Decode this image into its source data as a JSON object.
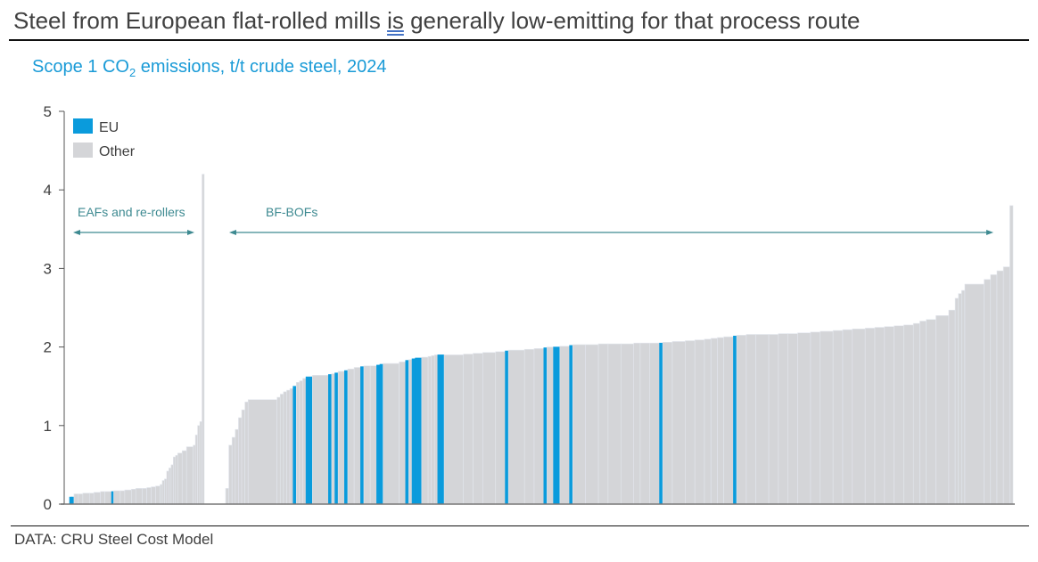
{
  "header": {
    "title_before": "Steel from European flat-rolled mills ",
    "title_underlined": "is",
    "title_after": " generally low-emitting for that process route",
    "subtitle_before": "Scope 1 CO",
    "subtitle_sub": "2",
    "subtitle_after": " emissions, t/t crude steel, 2024"
  },
  "footer": {
    "source": "DATA: CRU Steel Cost Model"
  },
  "colors": {
    "eu": "#0a9bdc",
    "other": "#d4d5d8",
    "other_edge": "#e3e7ee",
    "annotation": "#3e8a91",
    "axis": "#555555"
  },
  "chart_data": {
    "type": "bar",
    "title": "Scope 1 CO2 emissions, t/t crude steel, 2024",
    "xlabel": "",
    "ylabel": "",
    "ylim": [
      0,
      5
    ],
    "yticks": [
      "0",
      "1",
      "2",
      "3",
      "4",
      "5"
    ],
    "grid": false,
    "legend": {
      "position": "top-left",
      "entries": [
        {
          "name": "EU",
          "key": "eu"
        },
        {
          "name": "Other",
          "key": "other"
        }
      ]
    },
    "annotations": [
      {
        "text": "EAFs and re-rollers",
        "group": "eaf"
      },
      {
        "text": "BF-BOFs",
        "group": "bof"
      }
    ],
    "note": "Each bar is a mill; bar value = emissions (t CO2/t), weight = relative bar width, eu = EU mill",
    "groups": [
      {
        "name": "EAFs and re-rollers",
        "key": "eaf",
        "bars": [
          [
            0.09,
            1,
            1
          ],
          [
            0.09,
            1,
            1
          ],
          [
            0.13,
            2,
            0
          ],
          [
            0.13,
            2,
            0
          ],
          [
            0.14,
            3,
            0
          ],
          [
            0.14,
            2,
            0
          ],
          [
            0.15,
            3,
            0
          ],
          [
            0.16,
            2,
            0
          ],
          [
            0.16,
            3,
            0
          ],
          [
            0.16,
            1,
            1
          ],
          [
            0.17,
            3,
            0
          ],
          [
            0.17,
            2,
            0
          ],
          [
            0.18,
            3,
            0
          ],
          [
            0.19,
            2,
            0
          ],
          [
            0.2,
            3,
            0
          ],
          [
            0.2,
            2,
            0
          ],
          [
            0.21,
            2,
            0
          ],
          [
            0.22,
            2,
            0
          ],
          [
            0.23,
            2,
            0
          ],
          [
            0.25,
            1,
            0
          ],
          [
            0.3,
            1,
            0
          ],
          [
            0.32,
            1,
            0
          ],
          [
            0.42,
            1,
            0
          ],
          [
            0.46,
            1,
            0
          ],
          [
            0.5,
            1,
            0
          ],
          [
            0.6,
            1,
            0
          ],
          [
            0.62,
            1,
            0
          ],
          [
            0.65,
            2,
            0
          ],
          [
            0.68,
            2,
            0
          ],
          [
            0.73,
            3,
            0
          ],
          [
            0.75,
            1,
            0
          ],
          [
            0.88,
            1,
            0
          ],
          [
            1.0,
            1,
            0
          ],
          [
            1.05,
            1,
            0
          ],
          [
            4.2,
            1,
            0
          ]
        ]
      },
      {
        "name": "BF-BOFs",
        "key": "bof",
        "bars": [
          [
            0.2,
            1,
            0
          ],
          [
            0.75,
            1,
            0
          ],
          [
            0.85,
            1,
            0
          ],
          [
            0.95,
            1,
            0
          ],
          [
            1.1,
            1,
            0
          ],
          [
            1.2,
            1,
            0
          ],
          [
            1.3,
            1,
            0
          ],
          [
            1.33,
            9,
            0
          ],
          [
            1.36,
            1,
            0
          ],
          [
            1.4,
            1,
            0
          ],
          [
            1.43,
            1,
            0
          ],
          [
            1.45,
            1,
            0
          ],
          [
            1.47,
            1,
            0
          ],
          [
            1.5,
            1,
            1
          ],
          [
            1.55,
            1,
            0
          ],
          [
            1.57,
            1,
            0
          ],
          [
            1.6,
            1,
            0
          ],
          [
            1.62,
            2,
            1
          ],
          [
            1.64,
            5,
            0
          ],
          [
            1.65,
            1,
            1
          ],
          [
            1.66,
            1,
            0
          ],
          [
            1.67,
            1,
            1
          ],
          [
            1.69,
            2,
            0
          ],
          [
            1.7,
            1,
            1
          ],
          [
            1.72,
            2,
            0
          ],
          [
            1.74,
            2,
            0
          ],
          [
            1.75,
            1,
            1
          ],
          [
            1.76,
            2,
            0
          ],
          [
            1.76,
            2,
            0
          ],
          [
            1.77,
            1,
            1
          ],
          [
            1.78,
            1,
            1
          ],
          [
            1.79,
            5,
            0
          ],
          [
            1.81,
            2,
            0
          ],
          [
            1.83,
            1,
            1
          ],
          [
            1.84,
            1,
            0
          ],
          [
            1.85,
            1,
            1
          ],
          [
            1.86,
            2,
            1
          ],
          [
            1.87,
            2,
            0
          ],
          [
            1.88,
            1,
            0
          ],
          [
            1.89,
            1,
            0
          ],
          [
            1.9,
            1,
            0
          ],
          [
            1.9,
            2,
            1
          ],
          [
            1.9,
            6,
            0
          ],
          [
            1.91,
            3,
            0
          ],
          [
            1.92,
            3,
            0
          ],
          [
            1.93,
            4,
            0
          ],
          [
            1.94,
            3,
            0
          ],
          [
            1.95,
            1,
            1
          ],
          [
            1.96,
            5,
            0
          ],
          [
            1.97,
            3,
            0
          ],
          [
            1.98,
            3,
            0
          ],
          [
            1.99,
            1,
            1
          ],
          [
            2.0,
            2,
            0
          ],
          [
            2.0,
            2,
            1
          ],
          [
            2.01,
            3,
            0
          ],
          [
            2.02,
            1,
            1
          ],
          [
            2.03,
            4,
            0
          ],
          [
            2.03,
            4,
            0
          ],
          [
            2.04,
            3,
            0
          ],
          [
            2.04,
            4,
            0
          ],
          [
            2.04,
            4,
            0
          ],
          [
            2.05,
            2,
            0
          ],
          [
            2.05,
            3,
            0
          ],
          [
            2.05,
            3,
            0
          ],
          [
            2.05,
            1,
            1
          ],
          [
            2.06,
            3,
            0
          ],
          [
            2.07,
            4,
            0
          ],
          [
            2.08,
            3,
            0
          ],
          [
            2.09,
            3,
            0
          ],
          [
            2.1,
            2,
            0
          ],
          [
            2.11,
            2,
            0
          ],
          [
            2.12,
            2,
            0
          ],
          [
            2.13,
            3,
            0
          ],
          [
            2.14,
            1,
            1
          ],
          [
            2.15,
            3,
            0
          ],
          [
            2.16,
            3,
            0
          ],
          [
            2.16,
            4,
            0
          ],
          [
            2.16,
            3,
            0
          ],
          [
            2.17,
            3,
            0
          ],
          [
            2.17,
            3,
            0
          ],
          [
            2.18,
            4,
            0
          ],
          [
            2.19,
            3,
            0
          ],
          [
            2.2,
            4,
            0
          ],
          [
            2.21,
            3,
            0
          ],
          [
            2.22,
            3,
            0
          ],
          [
            2.23,
            4,
            0
          ],
          [
            2.24,
            3,
            0
          ],
          [
            2.25,
            3,
            0
          ],
          [
            2.26,
            3,
            0
          ],
          [
            2.27,
            3,
            0
          ],
          [
            2.28,
            3,
            0
          ],
          [
            2.3,
            2,
            0
          ],
          [
            2.33,
            2,
            0
          ],
          [
            2.35,
            3,
            0
          ],
          [
            2.4,
            4,
            0
          ],
          [
            2.47,
            2,
            0
          ],
          [
            2.62,
            1,
            0
          ],
          [
            2.68,
            1,
            0
          ],
          [
            2.72,
            1,
            0
          ],
          [
            2.8,
            6,
            0
          ],
          [
            2.86,
            2,
            0
          ],
          [
            2.92,
            2,
            0
          ],
          [
            2.97,
            2,
            0
          ],
          [
            3.02,
            2,
            0
          ],
          [
            3.8,
            1,
            0
          ]
        ]
      }
    ]
  }
}
